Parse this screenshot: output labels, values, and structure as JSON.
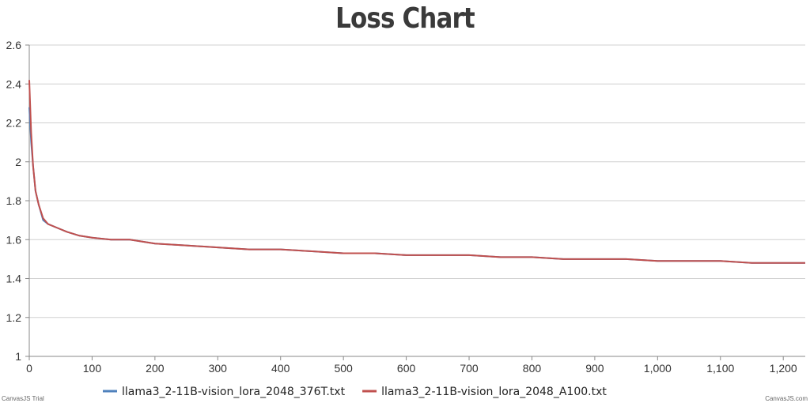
{
  "chart_data": {
    "type": "line",
    "title": "Loss Chart",
    "xlabel": "",
    "ylabel": "",
    "xlim": [
      0,
      1235
    ],
    "ylim": [
      1,
      2.6
    ],
    "y_ticks": [
      "1",
      "1.2",
      "1.4",
      "1.6",
      "1.8",
      "2",
      "2.2",
      "2.4",
      "2.6"
    ],
    "x_ticks": [
      "0",
      "100",
      "200",
      "300",
      "400",
      "500",
      "600",
      "700",
      "800",
      "900",
      "1,000",
      "1,100",
      "1,200"
    ],
    "grid": "horizontal",
    "legend_position": "bottom",
    "series": [
      {
        "name": "llama3_2-11B-vision_lora_2048_376T.txt",
        "color": "#4f81bc",
        "points": [
          [
            0,
            2.28
          ],
          [
            3,
            2.1
          ],
          [
            6,
            1.98
          ],
          [
            10,
            1.85
          ],
          [
            15,
            1.78
          ],
          [
            22,
            1.7
          ],
          [
            30,
            1.68
          ],
          [
            45,
            1.66
          ],
          [
            60,
            1.64
          ],
          [
            80,
            1.62
          ],
          [
            100,
            1.61
          ],
          [
            130,
            1.6
          ],
          [
            160,
            1.6
          ],
          [
            200,
            1.58
          ],
          [
            250,
            1.57
          ],
          [
            300,
            1.56
          ],
          [
            350,
            1.55
          ],
          [
            400,
            1.55
          ],
          [
            450,
            1.54
          ],
          [
            500,
            1.53
          ],
          [
            550,
            1.53
          ],
          [
            600,
            1.52
          ],
          [
            650,
            1.52
          ],
          [
            700,
            1.52
          ],
          [
            750,
            1.51
          ],
          [
            800,
            1.51
          ],
          [
            850,
            1.5
          ],
          [
            900,
            1.5
          ],
          [
            950,
            1.5
          ],
          [
            1000,
            1.49
          ],
          [
            1050,
            1.49
          ],
          [
            1100,
            1.49
          ],
          [
            1150,
            1.48
          ],
          [
            1200,
            1.48
          ],
          [
            1235,
            1.48
          ]
        ]
      },
      {
        "name": "llama3_2-11B-vision_lora_2048_A100.txt",
        "color": "#c0504e",
        "points": [
          [
            0,
            2.42
          ],
          [
            3,
            2.15
          ],
          [
            6,
            1.98
          ],
          [
            10,
            1.85
          ],
          [
            15,
            1.78
          ],
          [
            22,
            1.71
          ],
          [
            30,
            1.68
          ],
          [
            45,
            1.66
          ],
          [
            60,
            1.64
          ],
          [
            80,
            1.62
          ],
          [
            100,
            1.61
          ],
          [
            130,
            1.6
          ],
          [
            160,
            1.6
          ],
          [
            200,
            1.58
          ],
          [
            250,
            1.57
          ],
          [
            300,
            1.56
          ],
          [
            350,
            1.55
          ],
          [
            400,
            1.55
          ],
          [
            450,
            1.54
          ],
          [
            500,
            1.53
          ],
          [
            550,
            1.53
          ],
          [
            600,
            1.52
          ],
          [
            650,
            1.52
          ],
          [
            700,
            1.52
          ],
          [
            750,
            1.51
          ],
          [
            800,
            1.51
          ],
          [
            850,
            1.5
          ],
          [
            900,
            1.5
          ],
          [
            950,
            1.5
          ],
          [
            1000,
            1.49
          ],
          [
            1050,
            1.49
          ],
          [
            1100,
            1.49
          ],
          [
            1150,
            1.48
          ],
          [
            1200,
            1.48
          ],
          [
            1235,
            1.48
          ]
        ]
      }
    ]
  },
  "credits": {
    "left": "CanvasJS Trial",
    "right": "CanvasJS.com"
  }
}
